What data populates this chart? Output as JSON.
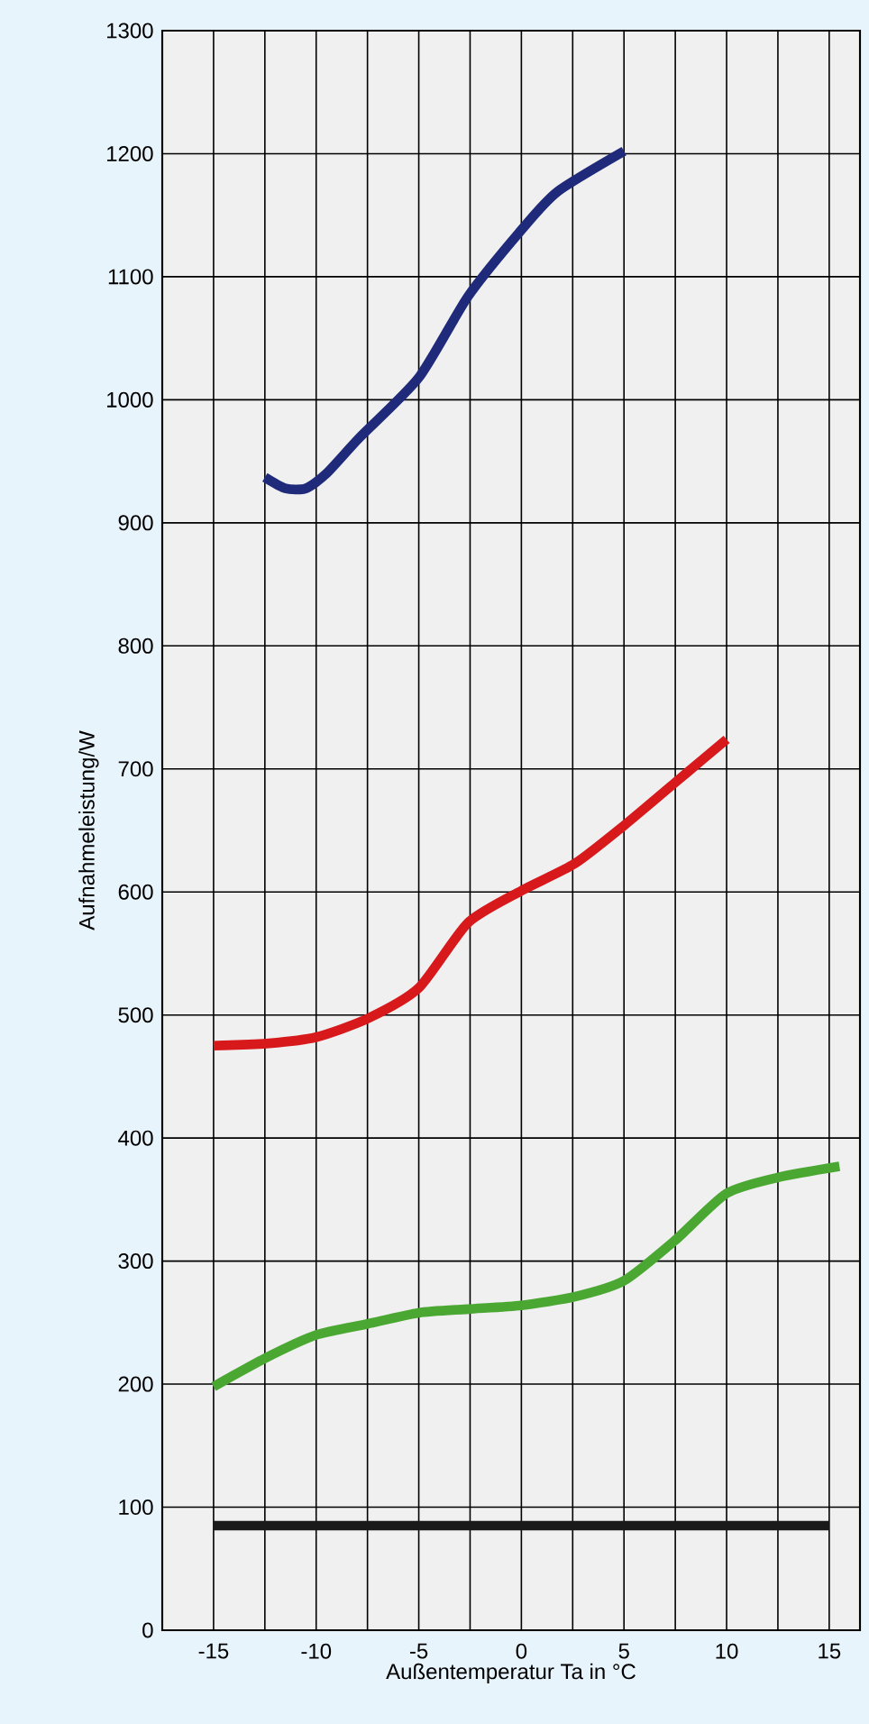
{
  "chart_data": {
    "type": "line",
    "xlabel": "Außentemperatur Ta in °C",
    "ylabel": "Aufnahmeleistung/W",
    "xlim": [
      -17.5,
      16.5
    ],
    "ylim": [
      0,
      1300
    ],
    "xticks": [
      {
        "value": -15,
        "label": "-15"
      },
      {
        "value": -12.5,
        "label": null
      },
      {
        "value": -10,
        "label": "-10"
      },
      {
        "value": -7.5,
        "label": null
      },
      {
        "value": -5,
        "label": "-5"
      },
      {
        "value": -2.5,
        "label": null
      },
      0,
      {
        "value": 2.5,
        "label": null
      },
      5,
      {
        "value": 7.5,
        "label": null
      },
      10,
      {
        "value": 12.5,
        "label": null
      },
      15
    ],
    "yticks": [
      0,
      100,
      200,
      300,
      400,
      500,
      600,
      700,
      800,
      900,
      1000,
      1100,
      1200,
      1300
    ],
    "grid": true,
    "line_style": "solid",
    "marker": "none",
    "series": [
      {
        "color": "#1f2a7a",
        "x": [
          -12.5,
          -11.5,
          -10.5,
          -9.5,
          -7.9,
          -5,
          -2.6,
          0,
          1.75,
          5
        ],
        "values": [
          937,
          928,
          928,
          940,
          969,
          1018,
          1084,
          1138,
          1169,
          1202
        ]
      },
      {
        "color": "#d7191c",
        "x": [
          -15,
          -12.3,
          -10,
          -7.5,
          -5,
          -2.6,
          0,
          2.6,
          5,
          7.5,
          10
        ],
        "values": [
          475,
          477,
          482,
          497,
          522,
          575,
          601,
          623,
          654,
          689,
          724
        ]
      },
      {
        "color": "#4aa832",
        "x": [
          -15,
          -12.5,
          -10,
          -7.5,
          -5,
          -2.6,
          0,
          2.6,
          5,
          7.5,
          10,
          12.5,
          15.5
        ],
        "values": [
          198,
          221,
          240,
          249,
          258,
          261,
          264,
          271,
          284,
          317,
          355,
          368,
          377
        ]
      },
      {
        "color": "#1a1a1a",
        "x": [
          -15,
          15
        ],
        "values": [
          85,
          85
        ]
      }
    ]
  }
}
